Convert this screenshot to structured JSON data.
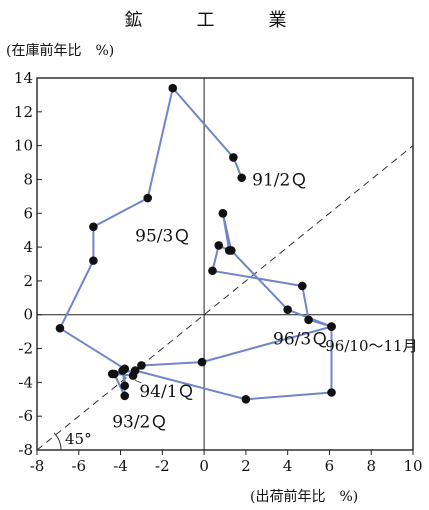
{
  "title": "鉱　工　業",
  "chart_data": {
    "type": "scatter",
    "title": "鉱　工　業",
    "xlabel": "(出荷前年比　%)",
    "ylabel": "(在庫前年比　%)",
    "xlim": [
      -8,
      10
    ],
    "ylim": [
      -8,
      14
    ],
    "x_ticks": [
      -8,
      -6,
      -4,
      -2,
      0,
      2,
      4,
      6,
      8,
      10
    ],
    "y_ticks": [
      -8,
      -6,
      -4,
      -2,
      0,
      2,
      4,
      6,
      8,
      10,
      12,
      14
    ],
    "series": [
      {
        "x": [
          1.8,
          1.4,
          -1.5,
          -2.7,
          -5.3,
          -5.3,
          -6.9,
          -3.8,
          -3.8,
          -4.3,
          -3.4,
          -3.0,
          -0.1,
          6.1,
          6.1,
          2.0,
          -3.3,
          -4.4,
          -3.9,
          -3.8
        ],
        "y": [
          8.1,
          9.3,
          13.4,
          6.9,
          5.2,
          3.2,
          -0.8,
          -3.2,
          -4.8,
          -3.5,
          -3.6,
          -3.0,
          -2.8,
          -0.7,
          -4.6,
          -5.0,
          -3.3,
          -3.5,
          -3.3,
          -4.2
        ]
      },
      {
        "x": [
          0.9,
          1.2,
          0.7,
          0.4,
          4.7,
          5.0,
          6.1,
          4.0,
          1.3,
          0.9
        ],
        "y": [
          6.0,
          3.8,
          4.1,
          2.6,
          1.7,
          -0.3,
          -0.7,
          0.3,
          3.8,
          6.0
        ]
      }
    ],
    "reference_line": {
      "label": "45°",
      "x": [
        -8,
        10
      ],
      "y": [
        -8,
        10
      ]
    },
    "annotations": [
      {
        "text": "91/2Ｑ",
        "x": 2.3,
        "y": 8.0
      },
      {
        "text": "95/3Ｑ",
        "x": -3.3,
        "y": 4.7
      },
      {
        "text": "96/3Ｑ",
        "x": 3.3,
        "y": -1.4
      },
      {
        "text": "96/10～11月",
        "x": 5.8,
        "y": -1.8
      },
      {
        "text": "94/1Ｑ",
        "x": -3.1,
        "y": -4.5
      },
      {
        "text": "93/2Ｑ",
        "x": -4.4,
        "y": -6.3
      }
    ],
    "line_color": "#6f86c9",
    "marker_color": "#111111",
    "grid": false
  }
}
